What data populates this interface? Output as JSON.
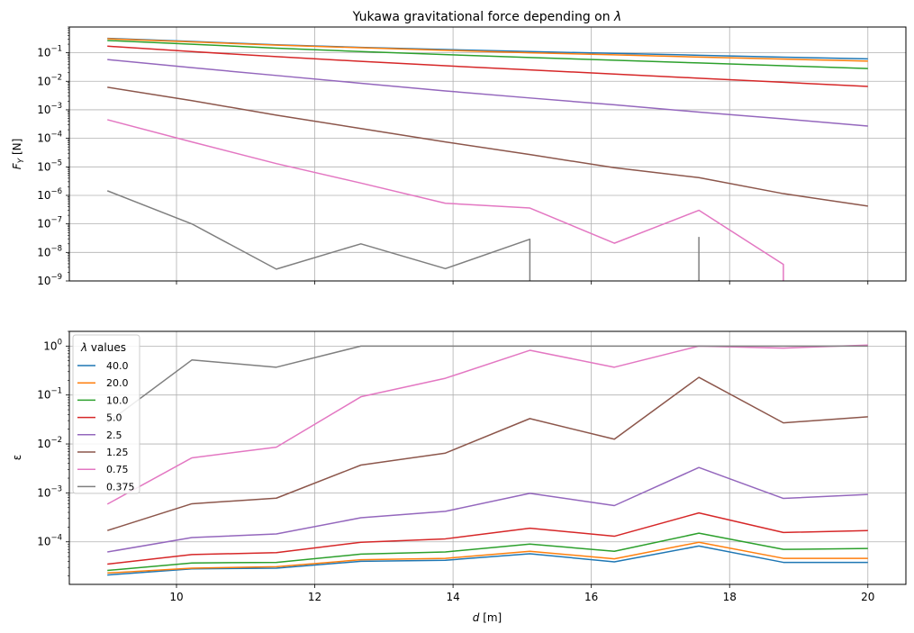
{
  "chart_data": [
    {
      "type": "line",
      "title": "Yukawa gravitational force depending on λ",
      "title_prefix": "Yukawa gravitational force depending on ",
      "title_symbol": "λ",
      "xlabel": "",
      "ylabel_main": "F",
      "ylabel_sub": "Y",
      "ylabel_unit": " [N]",
      "yscale": "log",
      "xlim": [
        8.45,
        20.55
      ],
      "ylim": [
        1e-09,
        0.8
      ],
      "grid": true,
      "x": [
        9.0,
        10.222,
        11.444,
        12.667,
        13.889,
        15.111,
        16.333,
        17.556,
        18.778,
        20.0
      ],
      "x_tick_values": [
        10,
        12,
        14,
        16,
        18,
        20
      ],
      "y_tick_labels": [
        {
          "exp": -9,
          "base": "10",
          "sup": "−9"
        },
        {
          "exp": -8,
          "base": "10",
          "sup": "−8"
        },
        {
          "exp": -7,
          "base": "10",
          "sup": "−7"
        },
        {
          "exp": -6,
          "base": "10",
          "sup": "−6"
        },
        {
          "exp": -5,
          "base": "10",
          "sup": "−5"
        },
        {
          "exp": -4,
          "base": "10",
          "sup": "−4"
        },
        {
          "exp": -3,
          "base": "10",
          "sup": "−3"
        },
        {
          "exp": -2,
          "base": "10",
          "sup": "−2"
        },
        {
          "exp": -1,
          "base": "10",
          "sup": "−1"
        }
      ],
      "series": [
        {
          "name": "40.0",
          "color": "#1f77b4",
          "values": [
            0.32,
            0.25,
            0.19,
            0.155,
            0.13,
            0.11,
            0.095,
            0.082,
            0.07,
            0.061
          ]
        },
        {
          "name": "20.0",
          "color": "#ff7f0e",
          "values": [
            0.31,
            0.24,
            0.185,
            0.15,
            0.122,
            0.1,
            0.085,
            0.071,
            0.06,
            0.051
          ]
        },
        {
          "name": "10.0",
          "color": "#2ca02c",
          "values": [
            0.27,
            0.2,
            0.145,
            0.11,
            0.086,
            0.068,
            0.055,
            0.044,
            0.035,
            0.028
          ]
        },
        {
          "name": "5.0",
          "color": "#d62728",
          "values": [
            0.17,
            0.11,
            0.073,
            0.05,
            0.035,
            0.025,
            0.018,
            0.0128,
            0.0092,
            0.0066
          ]
        },
        {
          "name": "2.5",
          "color": "#9467bd",
          "values": [
            0.058,
            0.03,
            0.016,
            0.0085,
            0.0046,
            0.0026,
            0.0015,
            0.00083,
            0.00048,
            0.00027
          ]
        },
        {
          "name": "1.25",
          "color": "#8c564b",
          "values": [
            0.0062,
            0.0021,
            0.00065,
            0.00022,
            7.5e-05,
            2.7e-05,
            9.3e-06,
            4.2e-06,
            1.15e-06,
            4.2e-07
          ]
        },
        {
          "name": "0.75",
          "color": "#e377c2",
          "values": [
            0.00045,
            7.5e-05,
            1.3e-05,
            2.7e-06,
            5.3e-07,
            3.6e-07,
            2.1e-08,
            3e-07,
            3.8e-09,
            null
          ]
        },
        {
          "name": "0.375",
          "color": "#7f7f7f",
          "values": [
            1.45e-06,
            1e-07,
            2.6e-09,
            2e-08,
            2.7e-09,
            2.9e-08,
            null,
            3.5e-08,
            null,
            null
          ]
        }
      ]
    },
    {
      "type": "line",
      "title": "",
      "xlabel": "",
      "xlabel_main": "d",
      "xlabel_unit": " [m]",
      "ylabel": "ε",
      "yscale": "log",
      "xlim": [
        8.45,
        20.55
      ],
      "ylim": [
        1.35e-05,
        2.0
      ],
      "grid": true,
      "x": [
        9.0,
        10.222,
        11.444,
        12.667,
        13.889,
        15.111,
        16.333,
        17.556,
        18.778,
        20.0
      ],
      "x_tick_labels": [
        "10",
        "12",
        "14",
        "16",
        "18",
        "20"
      ],
      "x_tick_values": [
        10,
        12,
        14,
        16,
        18,
        20
      ],
      "y_tick_labels": [
        {
          "exp": -4,
          "base": "10",
          "sup": "−4"
        },
        {
          "exp": -3,
          "base": "10",
          "sup": "−3"
        },
        {
          "exp": -2,
          "base": "10",
          "sup": "−2"
        },
        {
          "exp": -1,
          "base": "10",
          "sup": "−1"
        },
        {
          "exp": 0,
          "base": "10",
          "sup": "0"
        }
      ],
      "legend": {
        "placement": "top-left",
        "title_symbol": "λ",
        "title_rest": " values"
      },
      "series": [
        {
          "name": "40.0",
          "color": "#1f77b4",
          "values": [
            2.1e-05,
            2.8e-05,
            2.9e-05,
            4e-05,
            4.2e-05,
            5.7e-05,
            3.9e-05,
            8.2e-05,
            3.8e-05,
            3.8e-05
          ]
        },
        {
          "name": "20.0",
          "color": "#ff7f0e",
          "values": [
            2.3e-05,
            2.9e-05,
            3.1e-05,
            4.3e-05,
            4.6e-05,
            6.4e-05,
            4.5e-05,
            9.8e-05,
            4.6e-05,
            4.6e-05
          ]
        },
        {
          "name": "10.0",
          "color": "#2ca02c",
          "values": [
            2.6e-05,
            3.7e-05,
            3.8e-05,
            5.6e-05,
            6.2e-05,
            9e-05,
            6.4e-05,
            0.00015,
            7e-05,
            7.3e-05
          ]
        },
        {
          "name": "5.0",
          "color": "#d62728",
          "values": [
            3.5e-05,
            5.5e-05,
            6e-05,
            9.8e-05,
            0.000115,
            0.00019,
            0.00013,
            0.00039,
            0.000155,
            0.00017
          ]
        },
        {
          "name": "2.5",
          "color": "#9467bd",
          "values": [
            6.2e-05,
            0.000122,
            0.000145,
            0.00031,
            0.00042,
            0.00098,
            0.00055,
            0.0033,
            0.00077,
            0.00093
          ]
        },
        {
          "name": "1.25",
          "color": "#8c564b",
          "values": [
            0.00017,
            0.0006,
            0.00078,
            0.0037,
            0.0065,
            0.033,
            0.0125,
            0.23,
            0.027,
            0.036
          ]
        },
        {
          "name": "0.75",
          "color": "#e377c2",
          "values": [
            0.00059,
            0.0052,
            0.0086,
            0.092,
            0.22,
            0.82,
            0.37,
            1.0,
            0.91,
            1.05
          ]
        },
        {
          "name": "0.375",
          "color": "#7f7f7f",
          "values": [
            0.027,
            0.52,
            0.37,
            1.0,
            1.0,
            1.0,
            1.0,
            1.0,
            1.0,
            1.0
          ]
        }
      ]
    }
  ]
}
